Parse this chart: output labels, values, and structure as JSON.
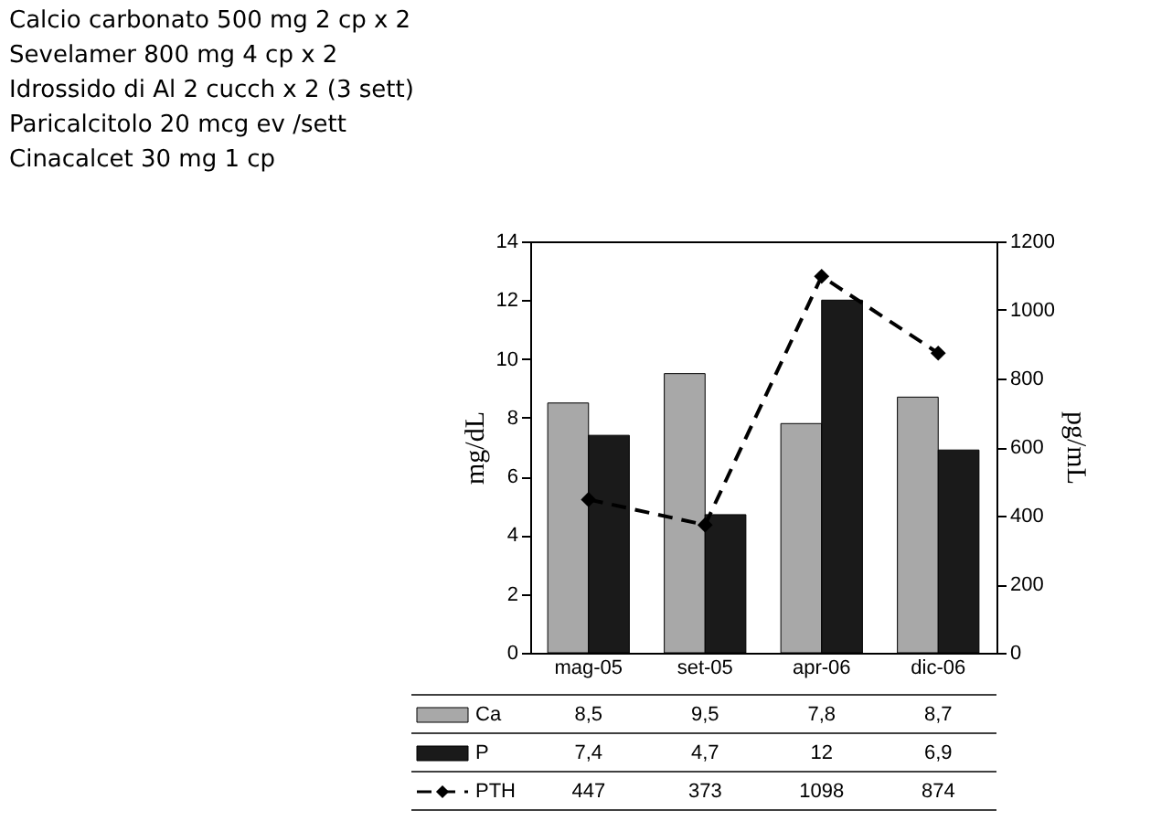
{
  "chart_data": {
    "type": "bar",
    "categories": [
      "mag-05",
      "set-05",
      "apr-06",
      "dic-06"
    ],
    "series": [
      {
        "name": "Ca",
        "color": "#a8a8a8",
        "values": [
          8.5,
          9.5,
          7.8,
          8.7
        ],
        "value_labels": [
          "8,5",
          "9,5",
          "7,8",
          "8,7"
        ]
      },
      {
        "name": "P",
        "color": "#1a1a1a",
        "values": [
          7.4,
          4.7,
          12,
          6.9
        ],
        "value_labels": [
          "7,4",
          "4,7",
          "12",
          "6,9"
        ]
      },
      {
        "name": "PTH",
        "type": "line",
        "axis": "y2",
        "color": "#000000",
        "marker": "diamond",
        "line_style": "dashed",
        "values": [
          447,
          373,
          1098,
          874
        ],
        "value_labels": [
          "447",
          "373",
          "1098",
          "874"
        ]
      }
    ],
    "ylabel": "mg/dL",
    "y2label": "pg/mL",
    "ylim": [
      0,
      14
    ],
    "yticks": [
      0,
      2,
      4,
      6,
      8,
      10,
      12,
      14
    ],
    "y2lim": [
      0,
      1200
    ],
    "y2ticks": [
      0,
      200,
      400,
      600,
      800,
      1000,
      1200
    ],
    "grid": false,
    "legend": "bottom",
    "annotations": [
      "Calcio carbonato 500 mg 2 cp x 2",
      "Sevelamer 800 mg 4 cp x 2",
      "Idrossido di Al 2 cucch x 2 (3 sett)",
      "Paricalcitolo 20 mcg ev /sett",
      "Cinacalcet 30 mg 1 cp"
    ]
  }
}
